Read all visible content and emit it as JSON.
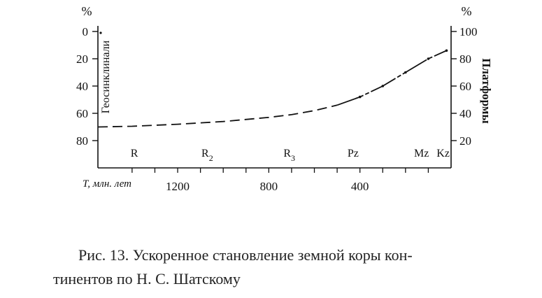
{
  "chart_data": {
    "type": "line",
    "x_axis": {
      "label": "T, млн. лет",
      "ticks": [
        1200,
        800,
        400
      ],
      "range": [
        1550,
        0
      ],
      "reversed": true
    },
    "y_left": {
      "unit": "%",
      "ticks": [
        0,
        20,
        40,
        60,
        80
      ],
      "range": [
        0,
        100
      ],
      "reversed": true,
      "label": "Геосинклинали"
    },
    "y_right": {
      "unit": "%",
      "ticks": [
        100,
        80,
        60,
        40,
        20
      ],
      "range": [
        0,
        100
      ],
      "label": "Платформы"
    },
    "eras": [
      {
        "label": "R",
        "sub": "",
        "x": 1390
      },
      {
        "label": "R",
        "sub": "2",
        "x": 1070
      },
      {
        "label": "R",
        "sub": "3",
        "x": 710
      },
      {
        "label": "Pz",
        "sub": "",
        "x": 430
      },
      {
        "label": "Mz",
        "sub": "",
        "x": 130
      },
      {
        "label": "Kz",
        "sub": "",
        "x": 35
      }
    ],
    "series": [
      {
        "x": [
          1550,
          1400,
          1200,
          1000,
          800,
          700,
          600,
          500,
          400,
          300,
          200,
          100,
          20
        ],
        "y": [
          30,
          30.5,
          32,
          34,
          37,
          39,
          42,
          46,
          52,
          60,
          70,
          80,
          86
        ],
        "style": "dashed-then-solid",
        "color": "#111111"
      }
    ],
    "grid": false
  },
  "caption": {
    "line1": "Рис. 13. Ускоренное становление земной коры кон-",
    "line2": "тинентов по Н. С. Шатскому"
  }
}
